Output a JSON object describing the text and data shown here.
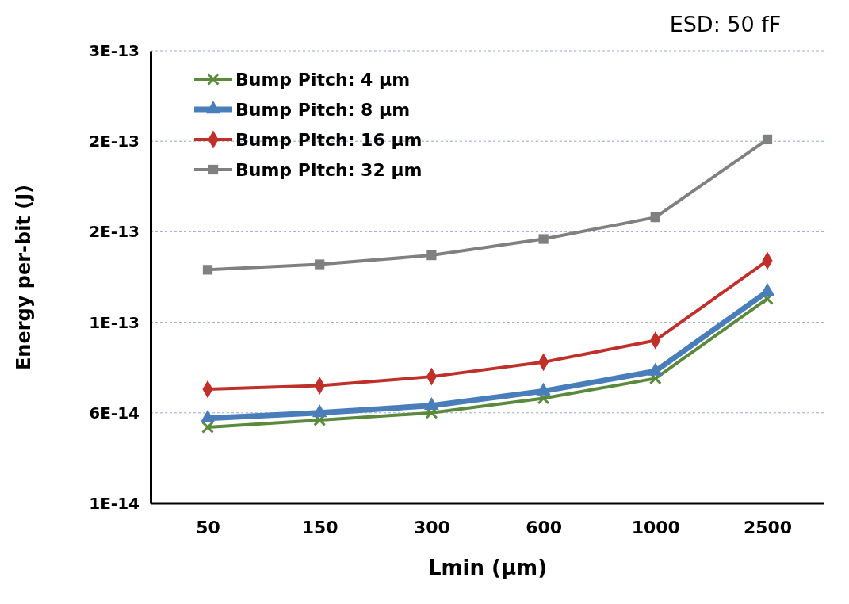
{
  "chart_data": {
    "type": "line",
    "title": "ESD: 50 fF",
    "xlabel": "Lmin (µm)",
    "ylabel": "Energy per-bit (J)",
    "categories": [
      "50",
      "150",
      "300",
      "600",
      "1000",
      "2500"
    ],
    "ylim": [
      1e-14,
      2.6e-13
    ],
    "yticks": [
      {
        "value": 1e-14,
        "label": "1E-14"
      },
      {
        "value": 6e-14,
        "label": "6E-14"
      },
      {
        "value": 1.1e-13,
        "label": "1E-13"
      },
      {
        "value": 1.6e-13,
        "label": "2E-13"
      },
      {
        "value": 2.1e-13,
        "label": "2E-13"
      },
      {
        "value": 2.6e-13,
        "label": "3E-13"
      }
    ],
    "grid": "y",
    "legend": "top left",
    "series": [
      {
        "name": "Bump Pitch: 4 µm",
        "color": "#5b8a3c",
        "marker": "cross",
        "values": [
          5.2e-14,
          5.6e-14,
          6e-14,
          6.8e-14,
          7.9e-14,
          1.23e-13
        ]
      },
      {
        "name": "Bump Pitch: 8 µm",
        "color": "#4a7ebb",
        "marker": "triangle",
        "values": [
          5.7e-14,
          6e-14,
          6.4e-14,
          7.2e-14,
          8.3e-14,
          1.27e-13
        ]
      },
      {
        "name": "Bump Pitch: 16 µm",
        "color": "#c0302b",
        "marker": "diamond",
        "values": [
          7.3e-14,
          7.5e-14,
          8e-14,
          8.8e-14,
          1e-13,
          1.44e-13
        ]
      },
      {
        "name": "Bump Pitch: 32 µm",
        "color": "#808080",
        "marker": "square",
        "values": [
          1.39e-13,
          1.42e-13,
          1.47e-13,
          1.56e-13,
          1.68e-13,
          2.11e-13
        ]
      }
    ]
  }
}
